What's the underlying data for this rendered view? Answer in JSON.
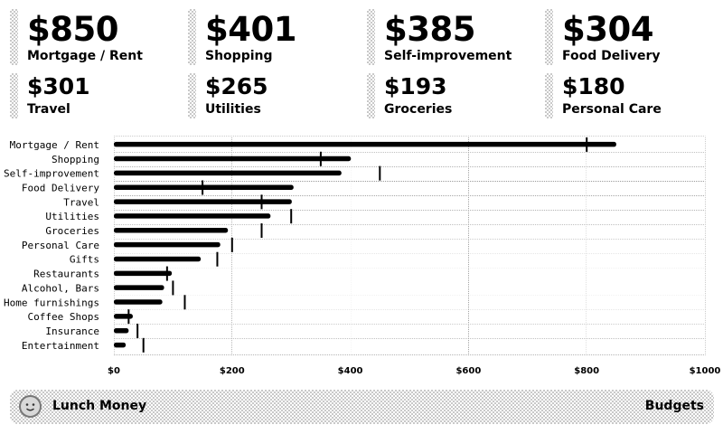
{
  "summary": [
    {
      "amount": "$850",
      "label": "Mortgage / Rent"
    },
    {
      "amount": "$401",
      "label": "Shopping"
    },
    {
      "amount": "$385",
      "label": "Self-improvement"
    },
    {
      "amount": "$304",
      "label": "Food Delivery"
    },
    {
      "amount": "$301",
      "label": "Travel"
    },
    {
      "amount": "$265",
      "label": "Utilities"
    },
    {
      "amount": "$193",
      "label": "Groceries"
    },
    {
      "amount": "$180",
      "label": "Personal Care"
    }
  ],
  "chart_data": {
    "type": "bar",
    "orientation": "horizontal",
    "categories": [
      "Mortgage / Rent",
      "Shopping",
      "Self-improvement",
      "Food Delivery",
      "Travel",
      "Utilities",
      "Groceries",
      "Personal Care",
      "Gifts",
      "Restaurants",
      "Alcohol, Bars",
      "Home furnishings",
      "Coffee Shops",
      "Insurance",
      "Entertainment"
    ],
    "series": [
      {
        "values": [
          850,
          401,
          385,
          304,
          301,
          265,
          193,
          180,
          147,
          98,
          85,
          82,
          32,
          25,
          20
        ]
      }
    ],
    "budgets": [
      800,
      350,
      450,
      150,
      250,
      300,
      250,
      200,
      175,
      90,
      100,
      120,
      25,
      40,
      50
    ],
    "xlim": [
      0,
      1000
    ],
    "xticks": [
      "$0",
      "$200",
      "$400",
      "$600",
      "$800",
      "$1000"
    ],
    "grid": true
  },
  "footer": {
    "app_title": "Lunch Money",
    "section": "Budgets"
  },
  "icons": {
    "logo": "lunch-money-face-icon"
  }
}
